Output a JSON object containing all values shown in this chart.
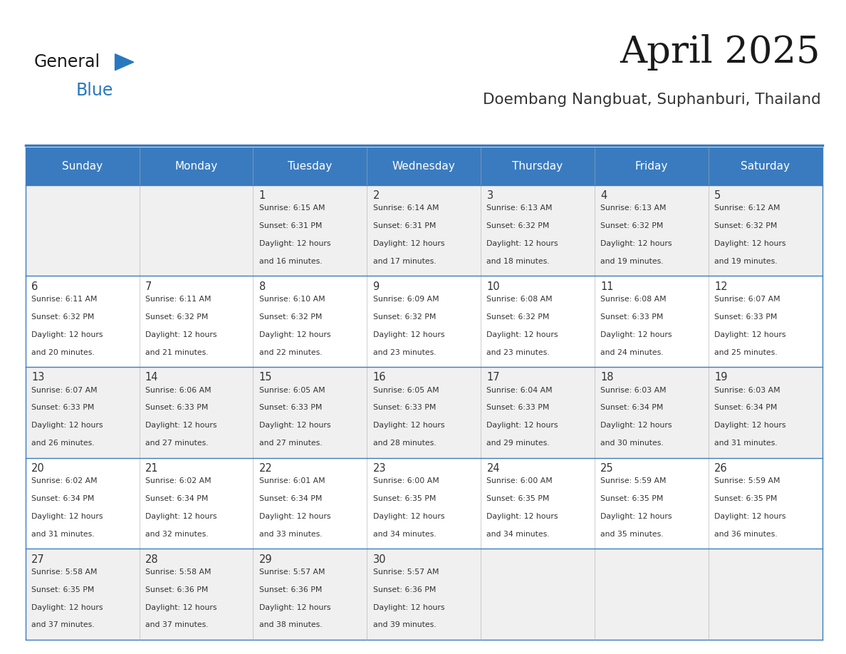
{
  "title": "April 2025",
  "subtitle": "Doembang Nangbuat, Suphanburi, Thailand",
  "days_of_week": [
    "Sunday",
    "Monday",
    "Tuesday",
    "Wednesday",
    "Thursday",
    "Friday",
    "Saturday"
  ],
  "header_bg": "#3a7bbf",
  "header_text": "#ffffff",
  "row_bg_odd": "#f0f0f0",
  "row_bg_even": "#ffffff",
  "cell_border": "#3a7bbf",
  "title_color": "#1a1a1a",
  "subtitle_color": "#333333",
  "text_color": "#333333",
  "general_color": "#1a1a1a",
  "blue_color": "#2878c0",
  "calendar": [
    [
      null,
      null,
      {
        "day": 1,
        "sunrise": "6:15 AM",
        "sunset": "6:31 PM",
        "daylight": "12 hours",
        "daylight2": "and 16 minutes."
      },
      {
        "day": 2,
        "sunrise": "6:14 AM",
        "sunset": "6:31 PM",
        "daylight": "12 hours",
        "daylight2": "and 17 minutes."
      },
      {
        "day": 3,
        "sunrise": "6:13 AM",
        "sunset": "6:32 PM",
        "daylight": "12 hours",
        "daylight2": "and 18 minutes."
      },
      {
        "day": 4,
        "sunrise": "6:13 AM",
        "sunset": "6:32 PM",
        "daylight": "12 hours",
        "daylight2": "and 19 minutes."
      },
      {
        "day": 5,
        "sunrise": "6:12 AM",
        "sunset": "6:32 PM",
        "daylight": "12 hours",
        "daylight2": "and 19 minutes."
      }
    ],
    [
      {
        "day": 6,
        "sunrise": "6:11 AM",
        "sunset": "6:32 PM",
        "daylight": "12 hours",
        "daylight2": "and 20 minutes."
      },
      {
        "day": 7,
        "sunrise": "6:11 AM",
        "sunset": "6:32 PM",
        "daylight": "12 hours",
        "daylight2": "and 21 minutes."
      },
      {
        "day": 8,
        "sunrise": "6:10 AM",
        "sunset": "6:32 PM",
        "daylight": "12 hours",
        "daylight2": "and 22 minutes."
      },
      {
        "day": 9,
        "sunrise": "6:09 AM",
        "sunset": "6:32 PM",
        "daylight": "12 hours",
        "daylight2": "and 23 minutes."
      },
      {
        "day": 10,
        "sunrise": "6:08 AM",
        "sunset": "6:32 PM",
        "daylight": "12 hours",
        "daylight2": "and 23 minutes."
      },
      {
        "day": 11,
        "sunrise": "6:08 AM",
        "sunset": "6:33 PM",
        "daylight": "12 hours",
        "daylight2": "and 24 minutes."
      },
      {
        "day": 12,
        "sunrise": "6:07 AM",
        "sunset": "6:33 PM",
        "daylight": "12 hours",
        "daylight2": "and 25 minutes."
      }
    ],
    [
      {
        "day": 13,
        "sunrise": "6:07 AM",
        "sunset": "6:33 PM",
        "daylight": "12 hours",
        "daylight2": "and 26 minutes."
      },
      {
        "day": 14,
        "sunrise": "6:06 AM",
        "sunset": "6:33 PM",
        "daylight": "12 hours",
        "daylight2": "and 27 minutes."
      },
      {
        "day": 15,
        "sunrise": "6:05 AM",
        "sunset": "6:33 PM",
        "daylight": "12 hours",
        "daylight2": "and 27 minutes."
      },
      {
        "day": 16,
        "sunrise": "6:05 AM",
        "sunset": "6:33 PM",
        "daylight": "12 hours",
        "daylight2": "and 28 minutes."
      },
      {
        "day": 17,
        "sunrise": "6:04 AM",
        "sunset": "6:33 PM",
        "daylight": "12 hours",
        "daylight2": "and 29 minutes."
      },
      {
        "day": 18,
        "sunrise": "6:03 AM",
        "sunset": "6:34 PM",
        "daylight": "12 hours",
        "daylight2": "and 30 minutes."
      },
      {
        "day": 19,
        "sunrise": "6:03 AM",
        "sunset": "6:34 PM",
        "daylight": "12 hours",
        "daylight2": "and 31 minutes."
      }
    ],
    [
      {
        "day": 20,
        "sunrise": "6:02 AM",
        "sunset": "6:34 PM",
        "daylight": "12 hours",
        "daylight2": "and 31 minutes."
      },
      {
        "day": 21,
        "sunrise": "6:02 AM",
        "sunset": "6:34 PM",
        "daylight": "12 hours",
        "daylight2": "and 32 minutes."
      },
      {
        "day": 22,
        "sunrise": "6:01 AM",
        "sunset": "6:34 PM",
        "daylight": "12 hours",
        "daylight2": "and 33 minutes."
      },
      {
        "day": 23,
        "sunrise": "6:00 AM",
        "sunset": "6:35 PM",
        "daylight": "12 hours",
        "daylight2": "and 34 minutes."
      },
      {
        "day": 24,
        "sunrise": "6:00 AM",
        "sunset": "6:35 PM",
        "daylight": "12 hours",
        "daylight2": "and 34 minutes."
      },
      {
        "day": 25,
        "sunrise": "5:59 AM",
        "sunset": "6:35 PM",
        "daylight": "12 hours",
        "daylight2": "and 35 minutes."
      },
      {
        "day": 26,
        "sunrise": "5:59 AM",
        "sunset": "6:35 PM",
        "daylight": "12 hours",
        "daylight2": "and 36 minutes."
      }
    ],
    [
      {
        "day": 27,
        "sunrise": "5:58 AM",
        "sunset": "6:35 PM",
        "daylight": "12 hours",
        "daylight2": "and 37 minutes."
      },
      {
        "day": 28,
        "sunrise": "5:58 AM",
        "sunset": "6:36 PM",
        "daylight": "12 hours",
        "daylight2": "and 37 minutes."
      },
      {
        "day": 29,
        "sunrise": "5:57 AM",
        "sunset": "6:36 PM",
        "daylight": "12 hours",
        "daylight2": "and 38 minutes."
      },
      {
        "day": 30,
        "sunrise": "5:57 AM",
        "sunset": "6:36 PM",
        "daylight": "12 hours",
        "daylight2": "and 39 minutes."
      },
      null,
      null,
      null
    ]
  ]
}
